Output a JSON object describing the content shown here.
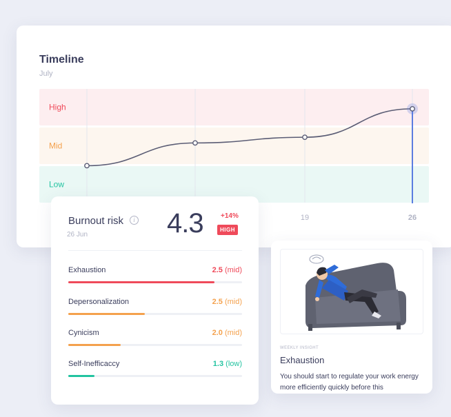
{
  "timeline": {
    "title": "Timeline",
    "subtitle": "July",
    "bands": [
      {
        "label": "High",
        "color": "#ef4a5a",
        "fill": "#fdeef0"
      },
      {
        "label": "Mid",
        "color": "#f4a14d",
        "fill": "#fdf6ef"
      },
      {
        "label": "Low",
        "color": "#22c3a0",
        "fill": "#eaf8f5"
      }
    ],
    "x_labels": [
      "",
      "",
      "19",
      "26"
    ],
    "accent": "#5b7de0"
  },
  "chart_data": {
    "type": "line",
    "x": [
      "",
      "",
      "19",
      "26"
    ],
    "y": [
      2.3,
      3.1,
      3.3,
      4.3
    ],
    "ylim": [
      1.0,
      5.0
    ],
    "bands": [
      "Low",
      "Mid",
      "High"
    ],
    "highlight_index": 3
  },
  "burnout": {
    "title": "Burnout risk",
    "date": "26 Jun",
    "score": "4.3",
    "change": "+14%",
    "badge": "HIGH",
    "metrics": [
      {
        "name": "Exhaustion",
        "value": "2.5",
        "level": "(mid)",
        "fraction": 0.84,
        "color": "#ef4a5a"
      },
      {
        "name": "Depersonalization",
        "value": "2.5",
        "level": "(mid)",
        "fraction": 0.44,
        "color": "#f4a14d"
      },
      {
        "name": "Cynicism",
        "value": "2.0",
        "level": "(mid)",
        "fraction": 0.3,
        "color": "#f4a14d"
      },
      {
        "name": "Self-Inefficaccy",
        "value": "1.3",
        "level": "(low)",
        "fraction": 0.15,
        "color": "#22c3a0"
      }
    ]
  },
  "insight": {
    "kicker": "WEEKLY INSIGHT",
    "title": "Exhaustion",
    "body": "You should start to regulate your work energy more efficiently quickly before this",
    "image_icon": "person-lying-on-sofa-illustration"
  }
}
